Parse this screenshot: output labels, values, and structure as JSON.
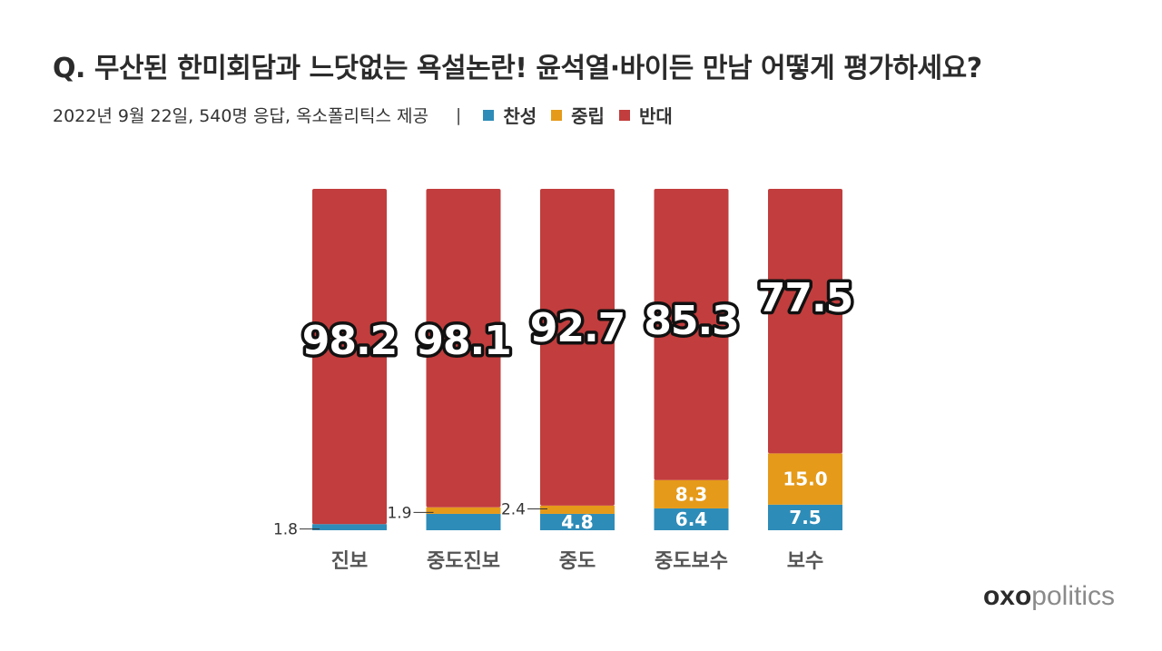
{
  "title": "Q. 무산된 한미회담과 느닷없는 욕설논란! 윤석열·바이든 만남 어떻게 평가하세요?",
  "subtitle": "2022년 9월 22일, 540명 응답, 옥소폴리틱스 제공",
  "separator": "|",
  "brand": {
    "part1": "oxo",
    "part2": "politics"
  },
  "chart_data": {
    "type": "bar",
    "stacked": true,
    "categories": [
      "진보",
      "중도진보",
      "중도",
      "중도보수",
      "보수"
    ],
    "series": [
      {
        "name": "찬성",
        "color": "#2e8cb8",
        "values": [
          1.8,
          4.8,
          4.8,
          6.4,
          7.5
        ]
      },
      {
        "name": "중립",
        "color": "#e59a19",
        "values": [
          0.0,
          1.9,
          2.4,
          8.3,
          15.0
        ]
      },
      {
        "name": "반대",
        "color": "#c23d3d",
        "values": [
          98.2,
          98.1,
          92.7,
          85.3,
          77.5
        ]
      }
    ],
    "display_labels": {
      "찬성": [
        "1.8",
        "",
        "4.8",
        "6.4",
        "7.5"
      ],
      "중립": [
        "",
        "1.9",
        "2.4",
        "8.3",
        "15.0"
      ],
      "반대": [
        "98.2",
        "98.1",
        "92.7",
        "85.3",
        "77.5"
      ]
    },
    "callouts": [
      {
        "category": "진보",
        "series": "찬성",
        "text": "1.8"
      },
      {
        "category": "중도진보",
        "series": "중립",
        "text": "1.9"
      },
      {
        "category": "중도",
        "series": "중립",
        "text": "2.4"
      }
    ],
    "legend_position": "top-left",
    "grid": false
  }
}
